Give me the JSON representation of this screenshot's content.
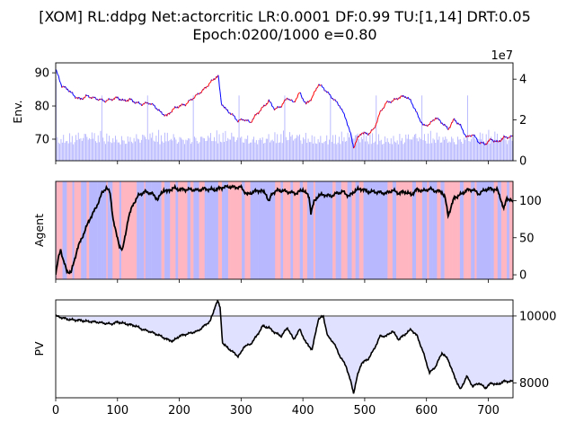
{
  "title": {
    "line1": "[XOM] RL:ddpg Net:actorcritic LR:0.0001 DF:0.99 TU:[1,14] DRT:0.05",
    "line2": "Epoch:0200/1000 e=0.80"
  },
  "chart_data": [
    {
      "type": "line",
      "panel": "env",
      "ylabel": "Env.",
      "xlim": [
        0,
        740
      ],
      "ylim": [
        63.5,
        93
      ],
      "yticks": [
        70,
        80,
        90
      ],
      "xticks": [
        0,
        100,
        200,
        300,
        400,
        500,
        600,
        700
      ],
      "grid": false,
      "series": [
        {
          "role": "price",
          "color": "#0000ff",
          "up_color": "#ff0000",
          "x": [
            0,
            5,
            10,
            20,
            30,
            40,
            50,
            60,
            70,
            80,
            90,
            100,
            110,
            120,
            130,
            140,
            150,
            160,
            170,
            180,
            190,
            200,
            210,
            220,
            230,
            240,
            250,
            258,
            263,
            268,
            275,
            285,
            295,
            305,
            315,
            325,
            335,
            345,
            355,
            365,
            375,
            385,
            395,
            405,
            415,
            425,
            433,
            440,
            450,
            460,
            470,
            478,
            482,
            488,
            495,
            505,
            515,
            525,
            535,
            545,
            555,
            565,
            575,
            585,
            595,
            605,
            615,
            625,
            635,
            645,
            655,
            665,
            675,
            685,
            695,
            705,
            715,
            725,
            740
          ],
          "y": [
            91,
            88.5,
            86,
            85,
            83,
            82,
            83,
            82.5,
            82,
            81.5,
            82,
            82.5,
            81.5,
            82,
            81,
            80.5,
            81,
            80,
            78,
            77,
            79,
            80,
            80.5,
            82,
            83.5,
            85,
            87,
            88.5,
            89,
            81,
            79,
            77.5,
            75.5,
            76,
            75,
            77.5,
            79.5,
            81.5,
            79,
            80,
            82.5,
            81,
            84,
            80.5,
            82.5,
            86.5,
            85.5,
            84,
            82,
            80,
            76,
            71,
            67.5,
            70,
            72,
            71.5,
            73,
            78,
            81,
            81.5,
            82.5,
            83,
            81.5,
            77.5,
            74,
            74.5,
            76.5,
            75,
            73,
            76,
            74,
            70.5,
            71.5,
            69,
            68.5,
            70,
            69,
            70.5,
            70.8
          ]
        },
        {
          "role": "volume",
          "color": "#0000ff",
          "axis": "right",
          "y2lim": [
            0,
            48000000
          ],
          "y2ticks": [
            0,
            2,
            4
          ],
          "y2_multiplier_label": "1e7",
          "typical_values": [
            8000000,
            20000000
          ]
        }
      ]
    },
    {
      "type": "line",
      "panel": "agent",
      "ylabel": "Agent",
      "xlim": [
        0,
        740
      ],
      "ylim": [
        -6,
        126
      ],
      "yticks": [
        0,
        50,
        100
      ],
      "xticks": [
        0,
        100,
        200,
        300,
        400,
        500,
        600,
        700
      ],
      "background_action_colors": [
        "#ffb6c1",
        "#b8b8ff"
      ],
      "series": [
        {
          "color": "#000000",
          "x": [
            0,
            5,
            8,
            12,
            18,
            25,
            35,
            45,
            55,
            65,
            75,
            82,
            88,
            93,
            98,
            103,
            108,
            112,
            117,
            125,
            135,
            145,
            155,
            165,
            170,
            175,
            180,
            190,
            200,
            210,
            220,
            230,
            240,
            250,
            260,
            270,
            280,
            290,
            300,
            310,
            320,
            330,
            340,
            345,
            350,
            360,
            370,
            380,
            390,
            400,
            410,
            413,
            418,
            425,
            435,
            445,
            455,
            465,
            475,
            485,
            495,
            505,
            515,
            525,
            535,
            545,
            555,
            565,
            575,
            585,
            595,
            605,
            615,
            625,
            630,
            635,
            645,
            655,
            665,
            675,
            685,
            695,
            705,
            715,
            720,
            725,
            730,
            740
          ],
          "y": [
            0,
            25,
            35,
            20,
            5,
            3,
            35,
            55,
            75,
            90,
            110,
            118,
            110,
            75,
            55,
            40,
            33,
            50,
            75,
            95,
            108,
            112,
            110,
            102,
            108,
            115,
            112,
            117,
            115,
            115,
            115,
            114,
            116,
            115,
            115,
            118,
            119,
            118,
            118,
            108,
            112,
            114,
            110,
            98,
            110,
            114,
            113,
            111,
            110,
            115,
            105,
            84,
            98,
            107,
            108,
            106,
            110,
            112,
            106,
            114,
            116,
            112,
            112,
            111,
            110,
            114,
            110,
            112,
            108,
            115,
            113,
            116,
            113,
            112,
            104,
            80,
            104,
            108,
            114,
            115,
            109,
            115,
            116,
            114,
            103,
            88,
            104,
            98
          ]
        }
      ]
    },
    {
      "type": "area",
      "panel": "pv",
      "ylabel": "PV",
      "xlim": [
        0,
        740
      ],
      "ylim": [
        7560,
        10480
      ],
      "yticks": [
        8000,
        10000
      ],
      "xticks": [
        0,
        100,
        200,
        300,
        400,
        500,
        600,
        700
      ],
      "baseline": 10000,
      "fill_color": "#e0e0ff",
      "series": [
        {
          "color": "#000000",
          "x": [
            0,
            10,
            20,
            30,
            40,
            50,
            60,
            70,
            80,
            90,
            100,
            110,
            120,
            130,
            140,
            150,
            160,
            170,
            180,
            190,
            200,
            210,
            220,
            230,
            240,
            250,
            255,
            258,
            262,
            266,
            270,
            275,
            285,
            295,
            300,
            305,
            315,
            325,
            335,
            345,
            355,
            365,
            375,
            385,
            395,
            405,
            415,
            425,
            433,
            440,
            450,
            460,
            470,
            478,
            482,
            488,
            495,
            505,
            515,
            525,
            535,
            545,
            555,
            565,
            575,
            585,
            595,
            605,
            615,
            625,
            635,
            645,
            655,
            665,
            675,
            685,
            695,
            705,
            715,
            725,
            740
          ],
          "y": [
            10000,
            9950,
            9900,
            9880,
            9870,
            9840,
            9830,
            9810,
            9780,
            9760,
            9820,
            9780,
            9740,
            9700,
            9600,
            9550,
            9480,
            9400,
            9300,
            9250,
            9400,
            9450,
            9500,
            9550,
            9700,
            9850,
            10100,
            10300,
            10450,
            10250,
            9200,
            9100,
            8950,
            8800,
            8900,
            9100,
            9150,
            9400,
            9700,
            9650,
            9500,
            9400,
            9650,
            9300,
            9600,
            9200,
            9000,
            9900,
            10000,
            9400,
            9200,
            8800,
            8500,
            8000,
            7700,
            8200,
            8600,
            8700,
            9000,
            9400,
            9400,
            9550,
            9300,
            9450,
            9600,
            9400,
            8900,
            8300,
            8500,
            8900,
            8700,
            8200,
            7800,
            8200,
            7900,
            8000,
            7850,
            8000,
            7950,
            8050,
            8050
          ]
        }
      ]
    }
  ]
}
